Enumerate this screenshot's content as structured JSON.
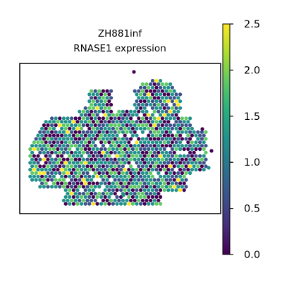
{
  "chart_data": {
    "type": "scatter",
    "title_line1": "ZH881inf",
    "title_line2": "RNASE1 expression",
    "xlabel": "",
    "ylabel": "",
    "colorbar": {
      "colormap": "viridis",
      "range": [
        0.0,
        2.5
      ],
      "ticks": [
        {
          "value": 0.0,
          "label": "0.0"
        },
        {
          "value": 0.5,
          "label": "0.5"
        },
        {
          "value": 1.0,
          "label": "1.0"
        },
        {
          "value": 1.5,
          "label": "1.5"
        },
        {
          "value": 2.0,
          "label": "2.0"
        },
        {
          "value": 2.5,
          "label": "2.5"
        }
      ]
    },
    "colors": [
      "#440154",
      "#3b528b",
      "#21918c",
      "#5ec962",
      "#fde725"
    ]
  }
}
